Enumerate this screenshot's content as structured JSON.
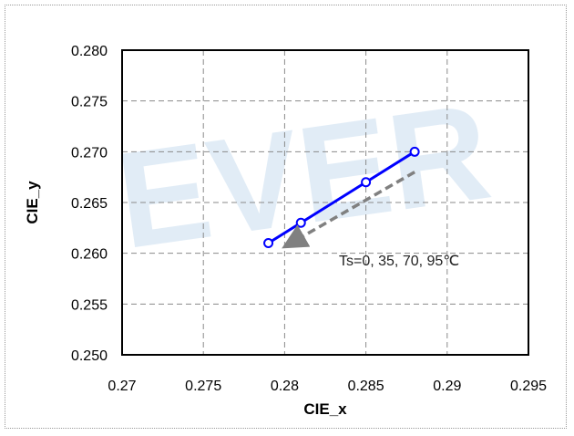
{
  "chart_data": {
    "type": "line",
    "xlabel": "CIE_x",
    "ylabel": "CIE_y",
    "xlim": [
      0.27,
      0.295
    ],
    "ylim": [
      0.25,
      0.28
    ],
    "x_ticks": [
      "0.27",
      "0.275",
      "0.28",
      "0.285",
      "0.29",
      "0.295"
    ],
    "y_ticks": [
      "0.250",
      "0.255",
      "0.260",
      "0.265",
      "0.270",
      "0.275",
      "0.280"
    ],
    "grid": true,
    "series": [
      {
        "x": [
          0.279,
          0.281,
          0.285,
          0.288
        ],
        "y": [
          0.261,
          0.263,
          0.267,
          0.27
        ],
        "color": "#0000ff",
        "marker": "open-circle"
      }
    ],
    "annotations": [
      {
        "text": "Ts=0, 35, 70, 95℃",
        "arrow_from": [
          0.288,
          0.268
        ],
        "arrow_to": [
          0.2805,
          0.2611
        ],
        "arrow_color": "#808080"
      }
    ],
    "watermark": "EVER"
  }
}
